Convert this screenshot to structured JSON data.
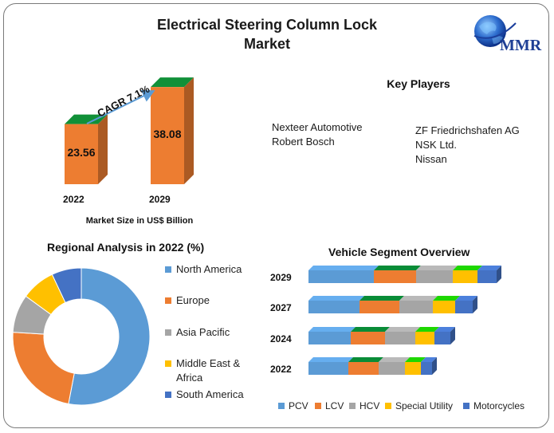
{
  "header": {
    "title_line1": "Electrical Steering Column Lock",
    "title_line2": "Market",
    "logo_text": "MMR"
  },
  "key_players": {
    "title": "Key Players",
    "column1": [
      "Nexteer Automotive",
      "Robert Bosch"
    ],
    "column2": [
      "ZF Friedrichshafen AG",
      "NSK Ltd.",
      "Nissan"
    ]
  },
  "market_size": {
    "caption": "Market Size in US$ Billion",
    "cagr_label": "CAGR 7.1%",
    "bars": [
      {
        "year": "2022",
        "value": 23.56,
        "value_label": "23.56"
      },
      {
        "year": "2029",
        "value": 38.08,
        "value_label": "38.08"
      }
    ],
    "bar_color": "#ed7d31"
  },
  "regional": {
    "title": "Regional Analysis in 2022 (%)",
    "slices": [
      {
        "name": "North America",
        "value": 53,
        "color": "#5b9bd5"
      },
      {
        "name": "Europe",
        "value": 23,
        "color": "#ed7d31"
      },
      {
        "name": "Asia Pacific",
        "value": 9,
        "color": "#a5a5a5"
      },
      {
        "name": "Middle East & Africa",
        "value": 8,
        "color": "#ffc000"
      },
      {
        "name": "South America",
        "value": 7,
        "color": "#4472c4"
      }
    ]
  },
  "vehicle_segment": {
    "title": "Vehicle Segment Overview",
    "categories": [
      "PCV",
      "LCV",
      "HCV",
      "Special Utility",
      "Motorcycles"
    ],
    "colors": [
      "#5b9bd5",
      "#ed7d31",
      "#a5a5a5",
      "#ffc000",
      "#4472c4"
    ],
    "years": [
      {
        "year": "2029",
        "values": [
          82,
          53,
          46,
          31,
          24
        ]
      },
      {
        "year": "2027",
        "values": [
          64,
          50,
          42,
          28,
          22
        ]
      },
      {
        "year": "2024",
        "values": [
          53,
          43,
          38,
          24,
          20
        ]
      },
      {
        "year": "2022",
        "values": [
          50,
          38,
          33,
          20,
          14
        ]
      }
    ]
  },
  "chart_data": [
    {
      "type": "bar",
      "title": "",
      "xlabel": "Market Size in US$ Billion",
      "categories": [
        "2022",
        "2029"
      ],
      "values": [
        23.56,
        38.08
      ],
      "annotations": [
        "CAGR 7.1%"
      ]
    },
    {
      "type": "pie",
      "title": "Regional Analysis in 2022 (%)",
      "categories": [
        "North America",
        "Europe",
        "Asia Pacific",
        "Middle East & Africa",
        "South America"
      ],
      "values": [
        53,
        23,
        9,
        8,
        7
      ],
      "legend": "right"
    },
    {
      "type": "bar",
      "title": "Vehicle Segment Overview",
      "orientation": "horizontal-stacked",
      "categories": [
        "2029",
        "2027",
        "2024",
        "2022"
      ],
      "series": [
        {
          "name": "PCV",
          "values": [
            82,
            64,
            53,
            50
          ]
        },
        {
          "name": "LCV",
          "values": [
            53,
            50,
            43,
            38
          ]
        },
        {
          "name": "HCV",
          "values": [
            46,
            42,
            38,
            33
          ]
        },
        {
          "name": "Special Utility",
          "values": [
            31,
            28,
            24,
            20
          ]
        },
        {
          "name": "Motorcycles",
          "values": [
            24,
            22,
            20,
            14
          ]
        }
      ],
      "legend": "bottom"
    }
  ]
}
